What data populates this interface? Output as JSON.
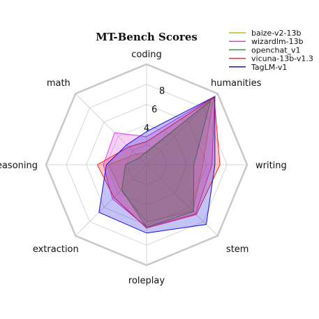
{
  "chart_data": {
    "type": "radar",
    "title": "MT-Bench Scores",
    "categories": [
      "coding",
      "humanities",
      "writing",
      "stem",
      "roleplay",
      "extraction",
      "reasoning",
      "math"
    ],
    "rlim": [
      0,
      10
    ],
    "rticks": [
      2,
      4,
      6,
      8
    ],
    "rtick_labels": [
      "",
      "4",
      "6",
      "8"
    ],
    "grid": true,
    "frame": "octagon",
    "legend_position": "top-right",
    "series": [
      {
        "name": "baize-v2-13b",
        "color": "#bcbd22",
        "values": [
          1.2,
          9.4,
          5.6,
          6.5,
          5.7,
          3.6,
          3.8,
          1.5
        ]
      },
      {
        "name": "wizardlm-13b",
        "color": "#e040e0",
        "values": [
          2.8,
          9.6,
          6.5,
          6.9,
          6.2,
          4.8,
          4.3,
          4.5
        ]
      },
      {
        "name": "openchat_v1",
        "color": "#2ca02c",
        "values": [
          1.3,
          9.0,
          4.7,
          6.6,
          6.2,
          3.5,
          2.1,
          1.0
        ]
      },
      {
        "name": "vicuna-13b-v1.3",
        "color": "#ff2020",
        "values": [
          2.3,
          9.5,
          7.3,
          7.0,
          6.3,
          4.6,
          4.9,
          2.5
        ]
      },
      {
        "name": "TagLM-v1",
        "color": "#1010e0",
        "values": [
          3.3,
          9.6,
          6.8,
          8.4,
          6.8,
          6.7,
          4.0,
          2.8
        ]
      }
    ]
  }
}
